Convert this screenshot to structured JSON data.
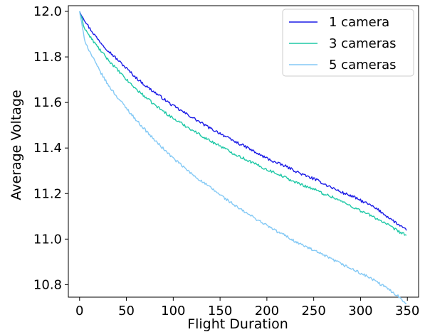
{
  "chart_data": {
    "type": "line",
    "title": "",
    "xlabel": "Flight Duration",
    "ylabel": "Average Voltage",
    "xlim": [
      -12,
      362
    ],
    "ylim": [
      10.745,
      12.025
    ],
    "xticks": [
      0,
      50,
      100,
      150,
      200,
      250,
      300,
      350
    ],
    "xtick_labels": [
      "0",
      "50",
      "100",
      "150",
      "200",
      "250",
      "300",
      "350"
    ],
    "yticks": [
      10.8,
      11.0,
      11.2,
      11.4,
      11.6,
      11.8,
      12.0
    ],
    "ytick_labels": [
      "10.8",
      "11.0",
      "11.2",
      "11.4",
      "11.6",
      "11.8",
      "12.0"
    ],
    "grid": false,
    "legend_position": "top-right",
    "x": [
      0,
      5,
      10,
      20,
      30,
      40,
      50,
      60,
      70,
      80,
      90,
      100,
      110,
      120,
      130,
      140,
      150,
      160,
      170,
      180,
      190,
      200,
      210,
      220,
      230,
      240,
      250,
      260,
      270,
      280,
      290,
      300,
      310,
      320,
      330,
      340,
      350
    ],
    "series": [
      {
        "name": "1 camera",
        "color": "#1a1ae6",
        "values": [
          12.0,
          11.965,
          11.93,
          11.875,
          11.83,
          11.79,
          11.75,
          11.71,
          11.675,
          11.645,
          11.615,
          11.585,
          11.56,
          11.535,
          11.51,
          11.485,
          11.465,
          11.44,
          11.42,
          11.4,
          11.375,
          11.355,
          11.335,
          11.32,
          11.3,
          11.28,
          11.265,
          11.245,
          11.225,
          11.205,
          11.19,
          11.17,
          11.15,
          11.125,
          11.095,
          11.065,
          11.035
        ]
      },
      {
        "name": "3 cameras",
        "color": "#1fc8a6",
        "values": [
          12.0,
          11.93,
          11.895,
          11.84,
          11.79,
          11.745,
          11.7,
          11.66,
          11.625,
          11.59,
          11.56,
          11.53,
          11.505,
          11.48,
          11.455,
          11.43,
          11.41,
          11.385,
          11.365,
          11.345,
          11.325,
          11.305,
          11.29,
          11.27,
          11.25,
          11.235,
          11.22,
          11.2,
          11.185,
          11.165,
          11.145,
          11.125,
          11.105,
          11.085,
          11.06,
          11.035,
          11.015
        ]
      },
      {
        "name": "5 cameras",
        "color": "#84c9f5",
        "values": [
          12.0,
          11.88,
          11.83,
          11.75,
          11.68,
          11.625,
          11.575,
          11.525,
          11.48,
          11.435,
          11.395,
          11.355,
          11.32,
          11.285,
          11.255,
          11.225,
          11.195,
          11.165,
          11.135,
          11.11,
          11.085,
          11.06,
          11.035,
          11.015,
          10.99,
          10.97,
          10.95,
          10.93,
          10.91,
          10.89,
          10.87,
          10.85,
          10.83,
          10.805,
          10.78,
          10.75,
          10.715
        ]
      }
    ]
  }
}
